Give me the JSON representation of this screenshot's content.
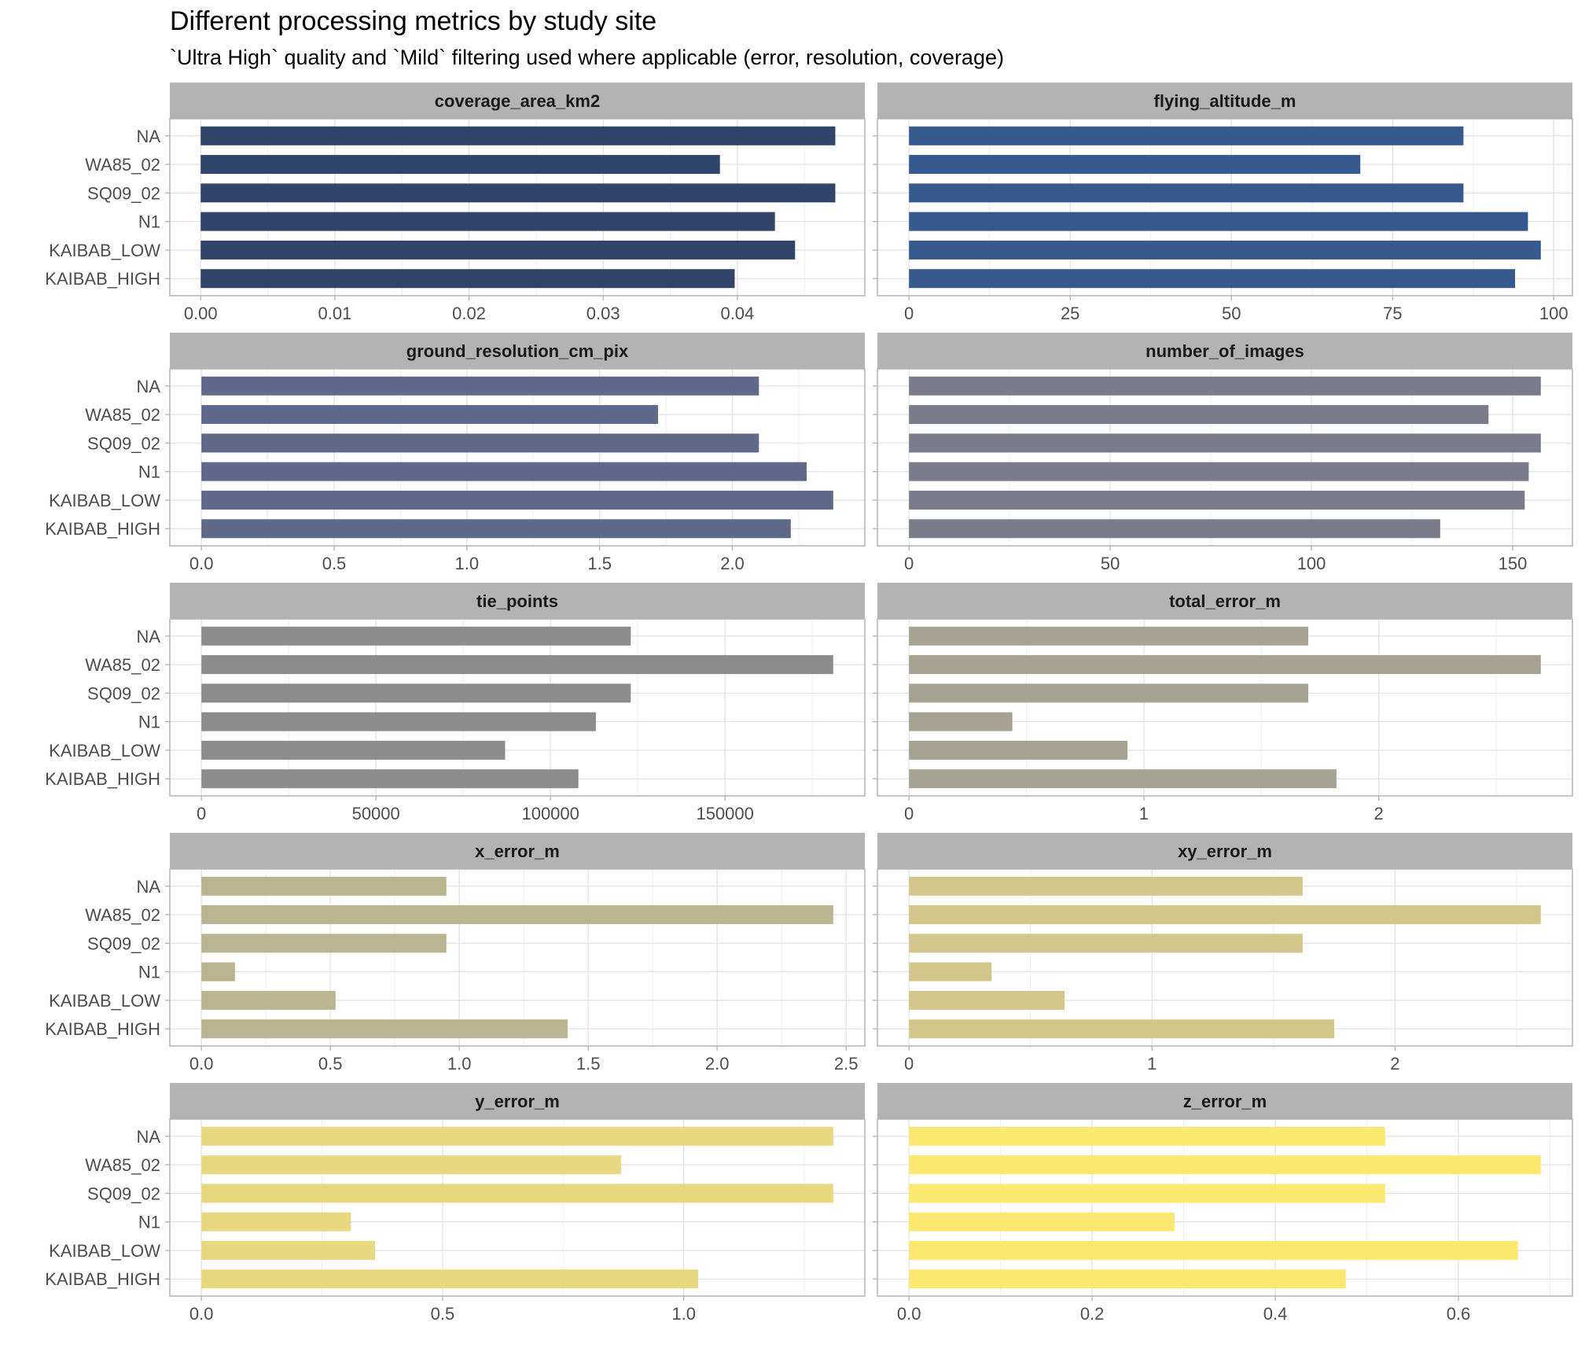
{
  "chart_data": {
    "type": "bar",
    "orientation": "horizontal",
    "title": "Different processing metrics by study site",
    "subtitle": "`Ultra High` quality and `Mild` filtering used where applicable (error, resolution, coverage)",
    "categories": [
      "NA",
      "WA85_02",
      "SQ09_02",
      "N1",
      "KAIBAB_LOW",
      "KAIBAB_HIGH"
    ],
    "grid": true,
    "legend": "none",
    "facets": [
      {
        "name": "coverage_area_km2",
        "color": "#31456a",
        "values": [
          0.0473,
          0.0387,
          0.0473,
          0.0428,
          0.0443,
          0.0398
        ],
        "xlim": [
          -0.0023,
          0.0495
        ],
        "ticks": [
          0.0,
          0.01,
          0.02,
          0.03,
          0.04
        ],
        "tick_labels": [
          "0.00",
          "0.01",
          "0.02",
          "0.03",
          "0.04"
        ]
      },
      {
        "name": "flying_altitude_m",
        "color": "#365a8e",
        "values": [
          86,
          70,
          86,
          96,
          98,
          94
        ],
        "xlim": [
          -4.9,
          102.9
        ],
        "ticks": [
          0,
          25,
          50,
          75,
          100
        ],
        "tick_labels": [
          "0",
          "25",
          "50",
          "75",
          "100"
        ]
      },
      {
        "name": "ground_resolution_cm_pix",
        "color": "#5f6a8a",
        "values": [
          2.1,
          1.72,
          2.1,
          2.28,
          2.38,
          2.22
        ],
        "xlim": [
          -0.119,
          2.499
        ],
        "ticks": [
          0.0,
          0.5,
          1.0,
          1.5,
          2.0
        ],
        "tick_labels": [
          "0.0",
          "0.5",
          "1.0",
          "1.5",
          "2.0"
        ]
      },
      {
        "name": "number_of_images",
        "color": "#7b7c89",
        "values": [
          157,
          144,
          157,
          154,
          153,
          132
        ],
        "xlim": [
          -7.85,
          164.85
        ],
        "ticks": [
          0,
          50,
          100,
          150
        ],
        "tick_labels": [
          "0",
          "50",
          "100",
          "150"
        ]
      },
      {
        "name": "tie_points",
        "color": "#8c8c8c",
        "values": [
          123000,
          181000,
          123000,
          113000,
          87000,
          108000
        ],
        "xlim": [
          -9050,
          190050
        ],
        "ticks": [
          0,
          50000,
          100000,
          150000
        ],
        "tick_labels": [
          "0",
          "50000",
          "100000",
          "150000"
        ]
      },
      {
        "name": "total_error_m",
        "color": "#a6a393",
        "values": [
          1.7,
          2.69,
          1.7,
          0.44,
          0.93,
          1.82
        ],
        "xlim": [
          -0.1345,
          2.8245
        ],
        "ticks": [
          0,
          1,
          2
        ],
        "tick_labels": [
          "0",
          "1",
          "2"
        ]
      },
      {
        "name": "x_error_m",
        "color": "#bbb491",
        "values": [
          0.95,
          2.45,
          0.95,
          0.13,
          0.52,
          1.42
        ],
        "xlim": [
          -0.1225,
          2.5725
        ],
        "ticks": [
          0.0,
          0.5,
          1.0,
          1.5,
          2.0,
          2.5
        ],
        "tick_labels": [
          "0.0",
          "0.5",
          "1.0",
          "1.5",
          "2.0",
          "2.5"
        ]
      },
      {
        "name": "xy_error_m",
        "color": "#d3c68a",
        "values": [
          1.62,
          2.6,
          1.62,
          0.34,
          0.64,
          1.75
        ],
        "xlim": [
          -0.13,
          2.73
        ],
        "ticks": [
          0,
          1,
          2
        ],
        "tick_labels": [
          "0",
          "1",
          "2"
        ]
      },
      {
        "name": "y_error_m",
        "color": "#e8d87f",
        "values": [
          1.31,
          0.87,
          1.31,
          0.31,
          0.36,
          1.03
        ],
        "xlim": [
          -0.0655,
          1.3755
        ],
        "ticks": [
          0.0,
          0.5,
          1.0
        ],
        "tick_labels": [
          "0.0",
          "0.5",
          "1.0"
        ]
      },
      {
        "name": "z_error_m",
        "color": "#fbe96f",
        "values": [
          0.52,
          0.69,
          0.52,
          0.29,
          0.665,
          0.477
        ],
        "xlim": [
          -0.0345,
          0.7245
        ],
        "ticks": [
          0.0,
          0.2,
          0.4,
          0.6
        ],
        "tick_labels": [
          "0.0",
          "0.2",
          "0.4",
          "0.6"
        ]
      }
    ]
  }
}
